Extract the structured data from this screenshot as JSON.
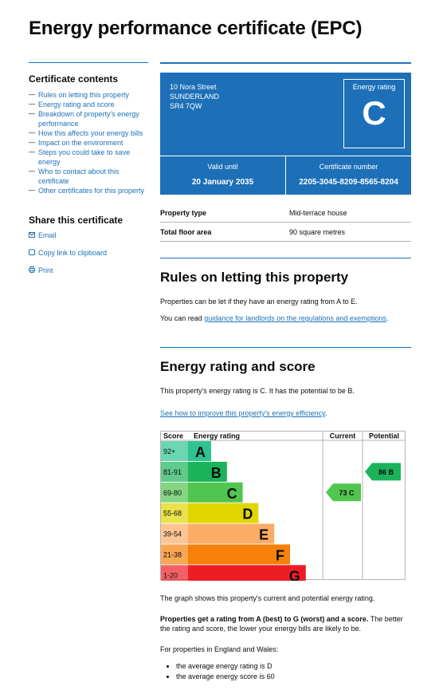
{
  "page": {
    "title": "Energy performance certificate (EPC)"
  },
  "sidebar": {
    "contents_title": "Certificate contents",
    "items": [
      "Rules on letting this property",
      "Energy rating and score",
      "Breakdown of property's energy performance",
      "How this affects your energy bills",
      "Impact on the environment",
      "Steps you could take to save energy",
      "Who to contact about this certificate",
      "Other certificates for this property"
    ],
    "share_title": "Share this certificate",
    "share": [
      {
        "label": "Email",
        "icon": "envelope-icon"
      },
      {
        "label": "Copy link to clipboard",
        "icon": "clipboard-icon"
      },
      {
        "label": "Print",
        "icon": "printer-icon"
      }
    ]
  },
  "header": {
    "address": [
      "10 Nora Street",
      "SUNDERLAND",
      "SR4 7QW"
    ],
    "rating_label": "Energy rating",
    "rating": "C",
    "valid_until_label": "Valid until",
    "valid_until": "20 January 2035",
    "cert_number_label": "Certificate number",
    "cert_number": "2205-3045-8209-8565-8204"
  },
  "property": {
    "rows": [
      {
        "key": "Property type",
        "value": "Mid-terrace house"
      },
      {
        "key": "Total floor area",
        "value": "90 square metres"
      }
    ]
  },
  "rules": {
    "title": "Rules on letting this property",
    "p1": "Properties can be let if they have an energy rating from A to E.",
    "p2_prefix": "You can read ",
    "p2_link": "guidance for landlords on the regulations and exemptions",
    "p2_suffix": "."
  },
  "energy": {
    "title": "Energy rating and score",
    "p1": "This property's energy rating is C. It has the potential to be B.",
    "link": "See how to improve this property's energy efficiency",
    "link_suffix": ".",
    "graph_caption": "The graph shows this property's current and potential energy rating.",
    "p3_bold": "Properties get a rating from A (best) to G (worst) and a score.",
    "p3_rest": " The better the rating and score, the lower your energy bills are likely to be.",
    "p4": "For properties in England and Wales:",
    "bullets": [
      "the average energy rating is D",
      "the average energy score is 60"
    ]
  },
  "chart_data": {
    "type": "bar",
    "headers": {
      "score": "Score",
      "rating": "Energy rating",
      "current": "Current",
      "potential": "Potential"
    },
    "bands": [
      {
        "score": "92+",
        "letter": "A",
        "color": "#2ec391"
      },
      {
        "score": "81-91",
        "letter": "B",
        "color": "#1bb35a"
      },
      {
        "score": "69-80",
        "letter": "C",
        "color": "#50c54f"
      },
      {
        "score": "55-68",
        "letter": "D",
        "color": "#e1d600"
      },
      {
        "score": "39-54",
        "letter": "E",
        "color": "#fbac65"
      },
      {
        "score": "21-38",
        "letter": "F",
        "color": "#f6800a"
      },
      {
        "score": "1-20",
        "letter": "G",
        "color": "#ed1c25"
      }
    ],
    "current": {
      "value": 73,
      "letter": "C",
      "label": "73  C",
      "color": "#50c54f"
    },
    "potential": {
      "value": 86,
      "letter": "B",
      "label": "86  B",
      "color": "#1bb35a"
    }
  }
}
